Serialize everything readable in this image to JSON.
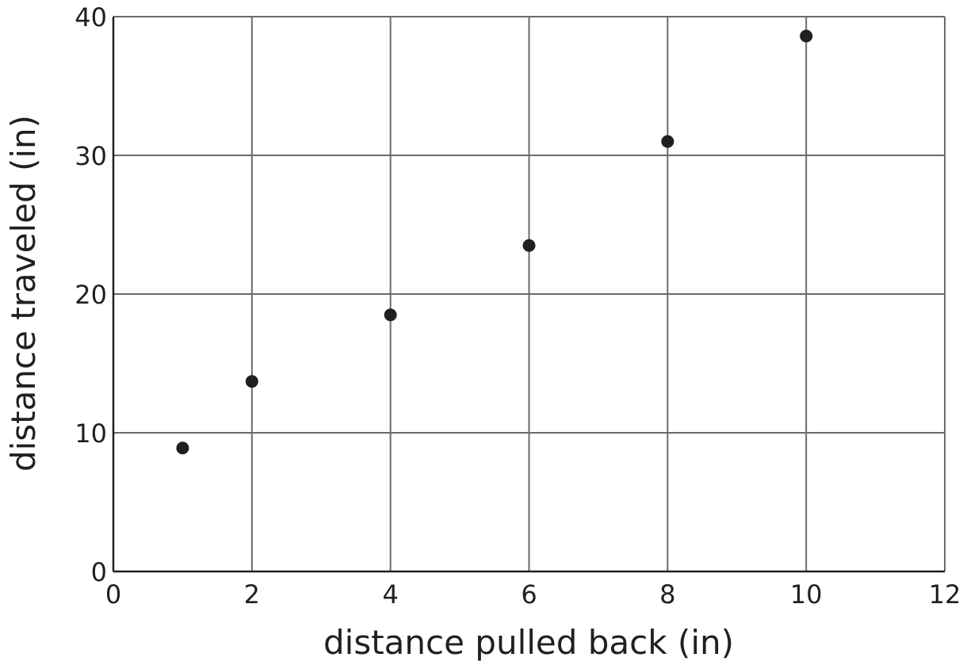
{
  "chart_data": {
    "type": "scatter",
    "title": "",
    "xlabel": "distance pulled back (in)",
    "ylabel": "distance traveled (in)",
    "xlim": [
      0,
      12
    ],
    "ylim": [
      0,
      40
    ],
    "xticks": [
      0,
      2,
      4,
      6,
      8,
      10,
      12
    ],
    "yticks": [
      0,
      10,
      20,
      30,
      40
    ],
    "grid": true,
    "point_color": "#231f20",
    "points": [
      {
        "x": 1,
        "y": 8.9
      },
      {
        "x": 2,
        "y": 13.7
      },
      {
        "x": 4,
        "y": 18.5
      },
      {
        "x": 6,
        "y": 23.5
      },
      {
        "x": 8,
        "y": 31.0
      },
      {
        "x": 10,
        "y": 38.6
      }
    ]
  }
}
